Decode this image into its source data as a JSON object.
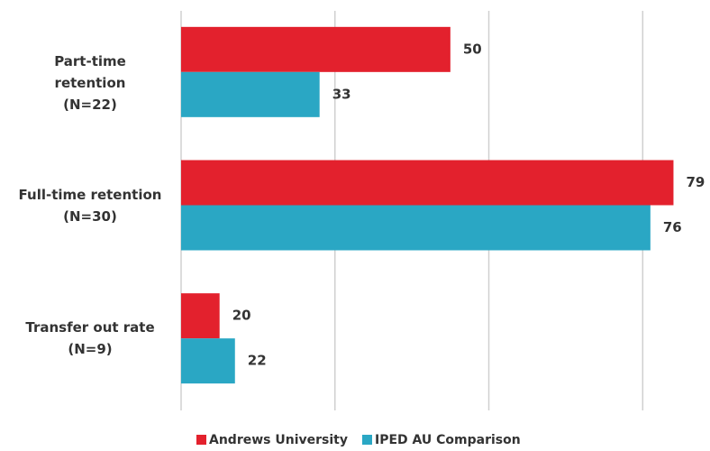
{
  "chart_data": {
    "type": "hbar",
    "categories": [
      "Part-time retention (N=22)",
      "Full-time retention (N=30)",
      "Transfer out rate (N=9)"
    ],
    "series": [
      {
        "name": "Andrews University",
        "color": "#e3212d",
        "values": [
          50,
          79,
          20
        ]
      },
      {
        "name": "IPED AU Comparison",
        "color": "#2aa7c4",
        "values": [
          33,
          76,
          22
        ]
      }
    ],
    "xlim": [
      15,
      80
    ],
    "xticks": [
      15,
      35,
      55,
      75
    ],
    "grid": true,
    "legend": "bottom"
  }
}
